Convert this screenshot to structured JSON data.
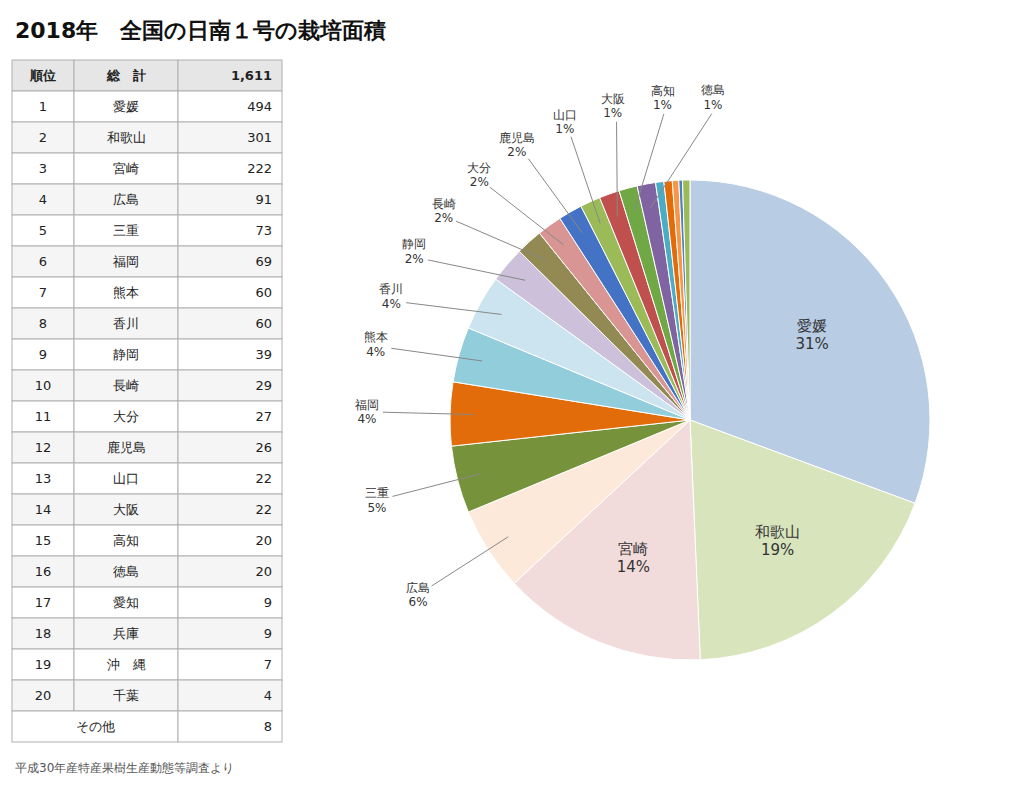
{
  "chart_data": [
    {
      "type": "pie",
      "title": "2018年　全国の日南１号の栽培面積",
      "subtitle": "平成30年産特産果樹生産動態等調査より",
      "categories": [
        "愛媛",
        "和歌山",
        "宮崎",
        "広島",
        "三重",
        "福岡",
        "熊本",
        "香川",
        "静岡",
        "長崎",
        "大分",
        "鹿児島",
        "山口",
        "大阪",
        "高知",
        "徳島",
        null,
        null,
        null,
        null,
        null
      ],
      "values": [
        494,
        301,
        222,
        91,
        73,
        69,
        60,
        60,
        39,
        29,
        27,
        26,
        22,
        22,
        20,
        20,
        9,
        9,
        7,
        4,
        8
      ],
      "value_labels": [
        "31%",
        "19%",
        "14%",
        "6%",
        "5%",
        "4%",
        "4%",
        "4%",
        "2%",
        "2%",
        "2%",
        "2%",
        "1%",
        "1%",
        "1%",
        "1%",
        null,
        null,
        null,
        null,
        null
      ],
      "colors": [
        "#b8cce4",
        "#d8e4bc",
        "#f2dcdb",
        "#fde9d9",
        "#76933c",
        "#e26b0a",
        "#92cddc",
        "#cce4f0",
        "#ccc0da",
        "#938953",
        "#d99594",
        "#4472c4",
        "#9bbb59",
        "#c0504d",
        "#71a846",
        "#8064a2",
        "#4bacc6",
        "#e36c09",
        "#f79646",
        "#4f81bd",
        "#9bbb59"
      ]
    },
    {
      "type": "table",
      "columns": [
        "順位",
        "総　計",
        "1,611"
      ],
      "rows": [
        [
          "1",
          "愛媛",
          "494"
        ],
        [
          "2",
          "和歌山",
          "301"
        ],
        [
          "3",
          "宮崎",
          "222"
        ],
        [
          "4",
          "広島",
          "91"
        ],
        [
          "5",
          "三重",
          "73"
        ],
        [
          "6",
          "福岡",
          "69"
        ],
        [
          "7",
          "熊本",
          "60"
        ],
        [
          "8",
          "香川",
          "60"
        ],
        [
          "9",
          "静岡",
          "39"
        ],
        [
          "10",
          "長崎",
          "29"
        ],
        [
          "11",
          "大分",
          "27"
        ],
        [
          "12",
          "鹿児島",
          "26"
        ],
        [
          "13",
          "山口",
          "22"
        ],
        [
          "14",
          "大阪",
          "22"
        ],
        [
          "15",
          "高知",
          "20"
        ],
        [
          "16",
          "徳島",
          "20"
        ],
        [
          "17",
          "愛知",
          "9"
        ],
        [
          "18",
          "兵庫",
          "9"
        ],
        [
          "19",
          "沖　縄",
          "7"
        ],
        [
          "20",
          "千葉",
          "4"
        ],
        [
          "その他",
          null,
          "8"
        ]
      ]
    }
  ]
}
